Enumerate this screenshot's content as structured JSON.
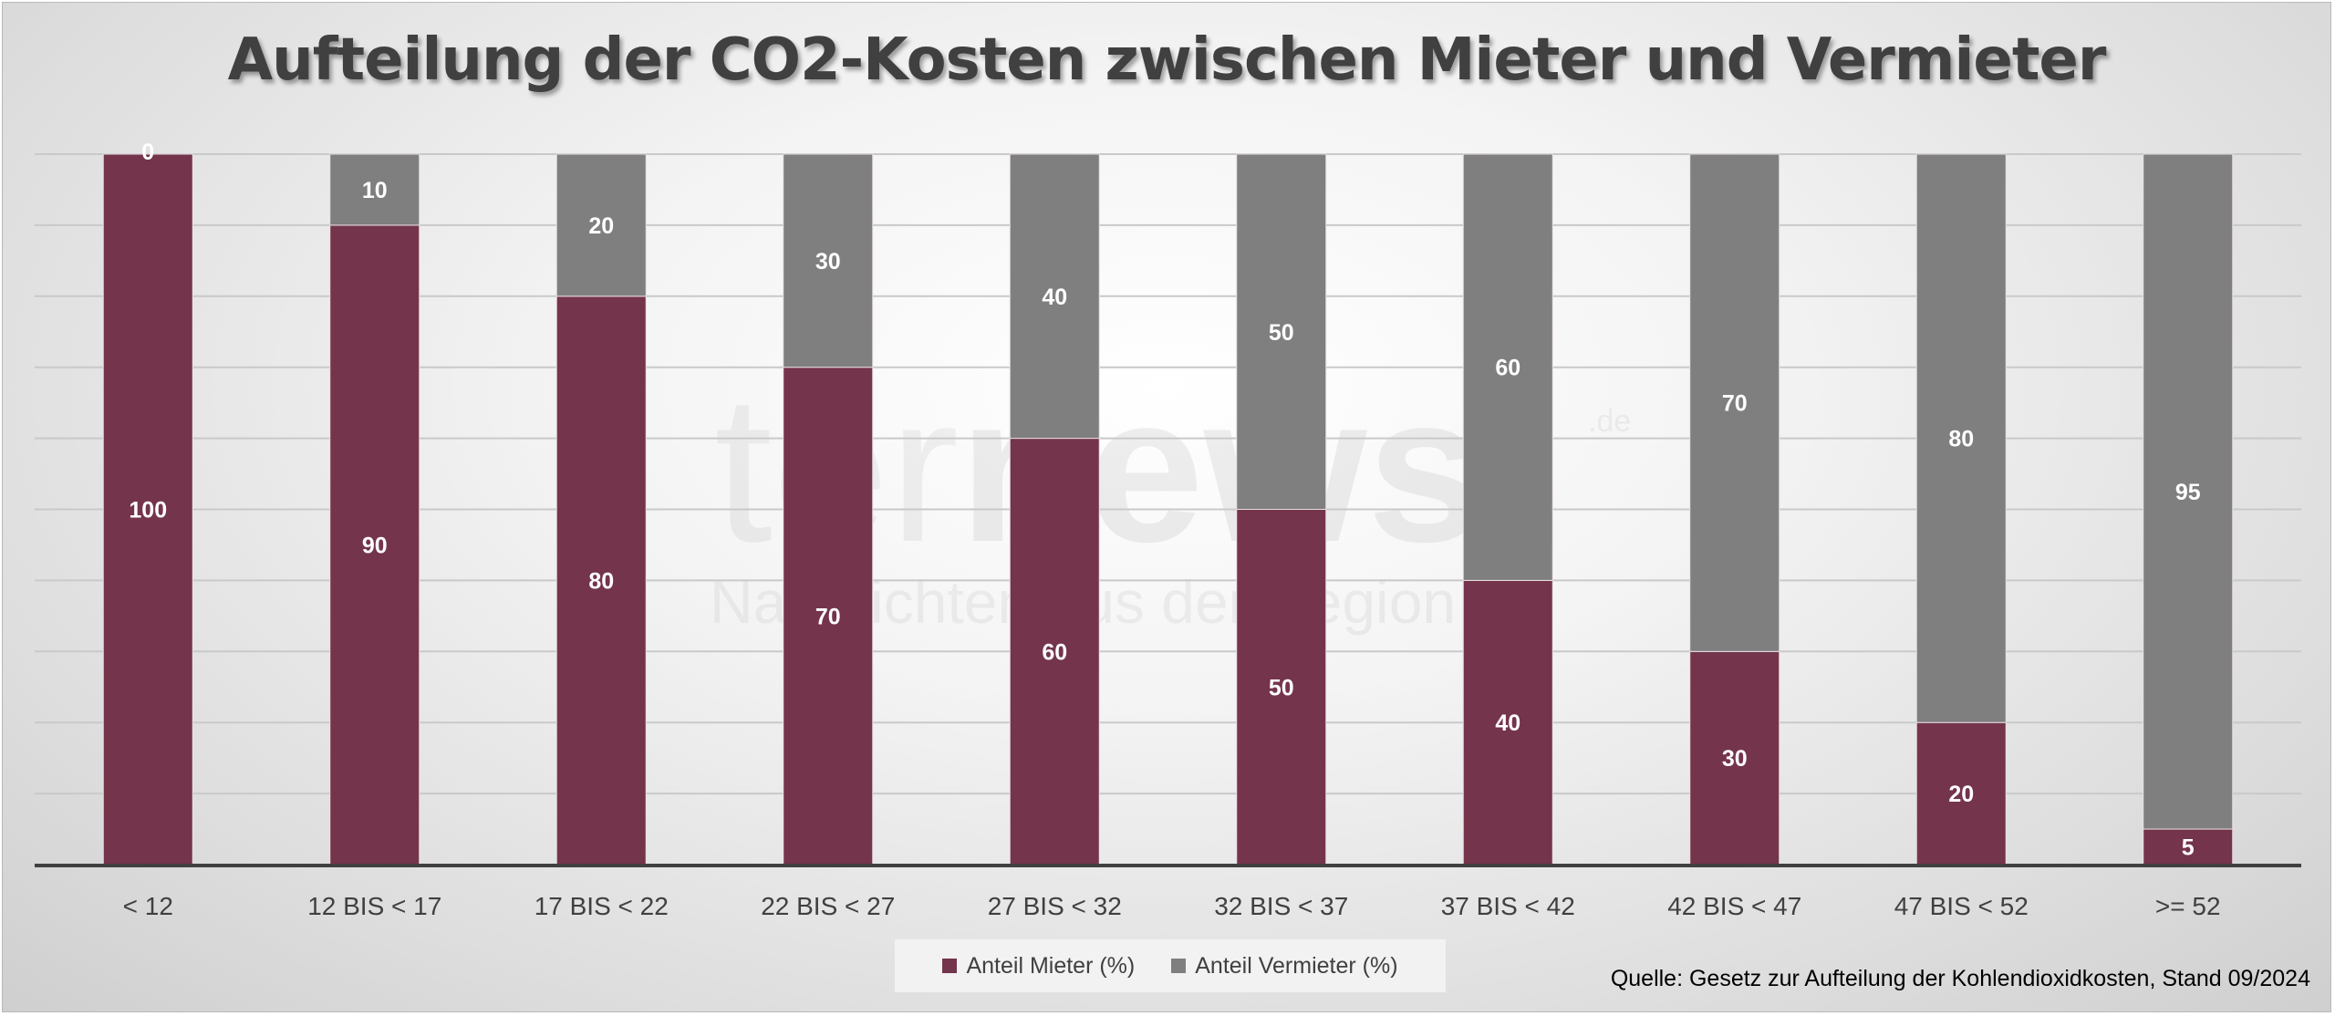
{
  "chart_data": {
    "type": "bar",
    "stacked": true,
    "title": "Aufteilung der CO2-Kosten zwischen Mieter und Vermieter",
    "categories": [
      "< 12",
      "12 BIS < 17",
      "17 BIS < 22",
      "22 BIS < 27",
      "27 BIS < 32",
      "32 BIS < 37",
      "37 BIS < 42",
      "42 BIS < 47",
      "47 BIS < 52",
      ">= 52"
    ],
    "series": [
      {
        "name": "Anteil Mieter (%)",
        "values": [
          100,
          90,
          80,
          70,
          60,
          50,
          40,
          30,
          20,
          5
        ],
        "color": "#74344c"
      },
      {
        "name": "Anteil Vermieter (%)",
        "values": [
          0,
          10,
          20,
          30,
          40,
          50,
          60,
          70,
          80,
          95
        ],
        "color": "#7f7f7f"
      }
    ],
    "ylim": [
      0,
      100
    ],
    "grid": true,
    "legend_position": "bottom",
    "data_labels": true
  },
  "source_note": "Quelle: Gesetz zur Aufteilung der Kohlendioxidkosten, Stand 09/2024",
  "watermark": {
    "brand": "teranews",
    "tagline": "Nachrichten aus der Region",
    "suffix": ".de"
  }
}
